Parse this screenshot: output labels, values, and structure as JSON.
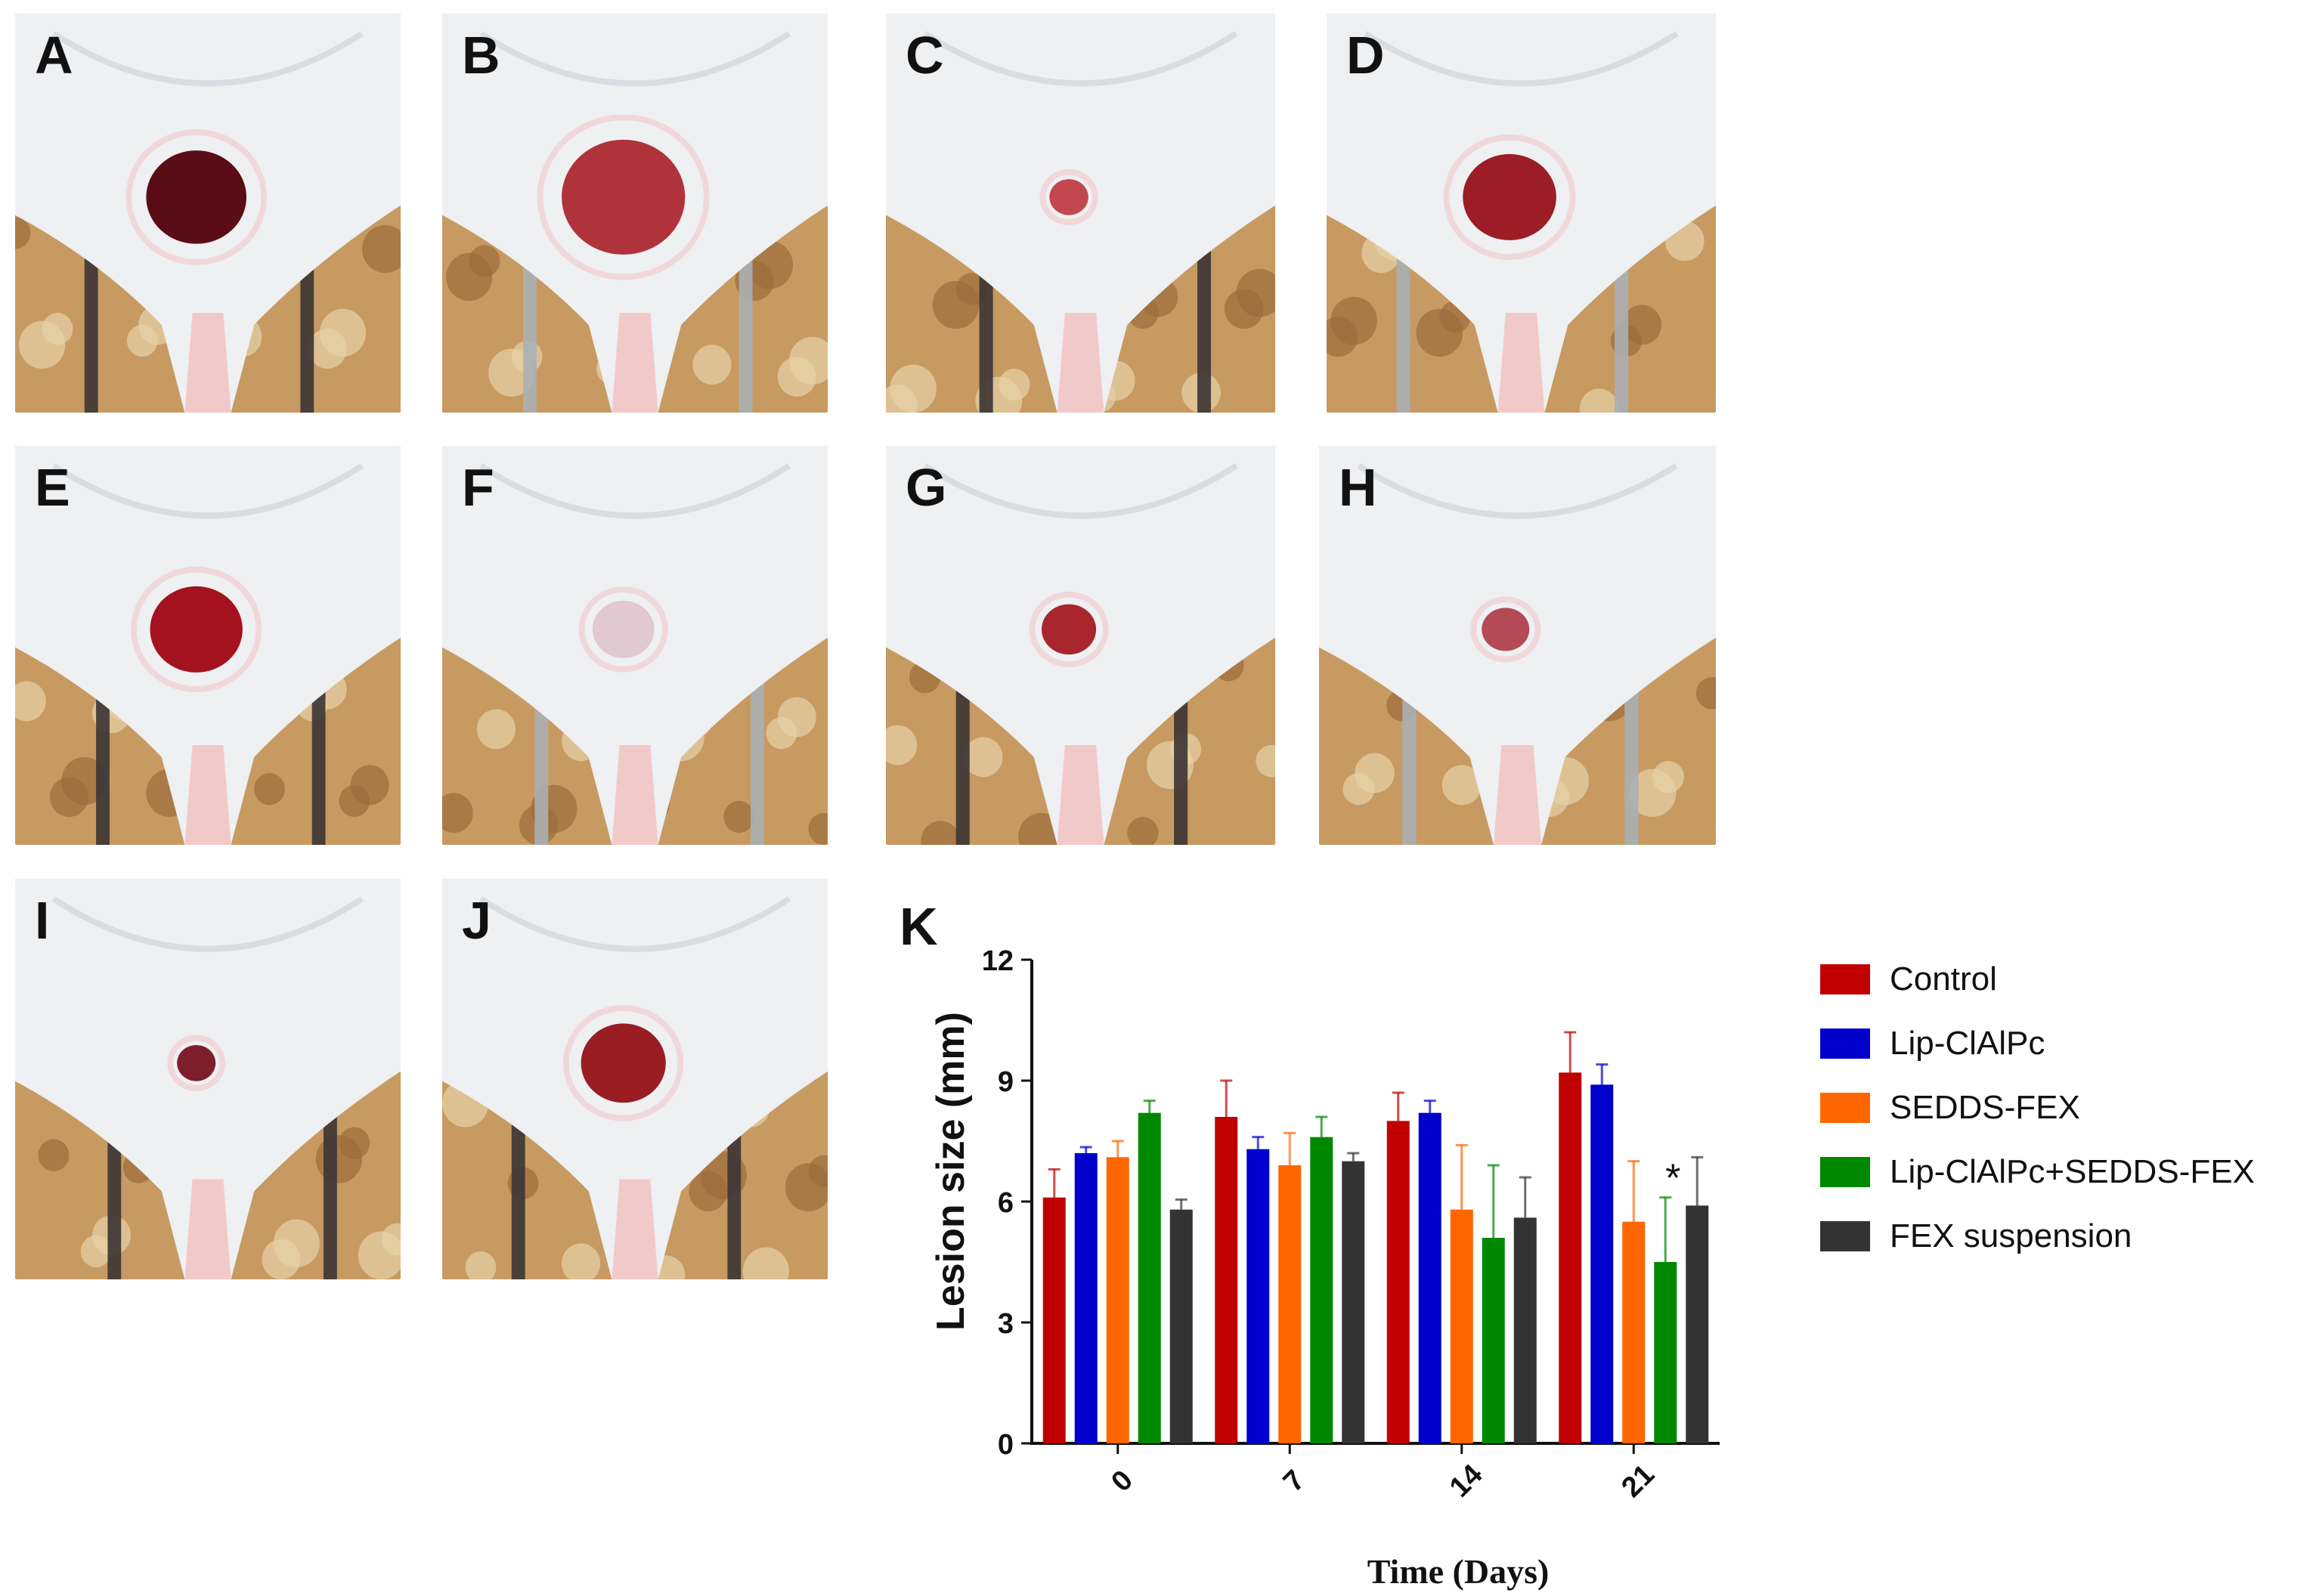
{
  "panels": [
    {
      "letter": "A",
      "lesion_color": "#5a0d16"
    },
    {
      "letter": "B",
      "lesion_color": "#b0333b"
    },
    {
      "letter": "C",
      "lesion_color": "#c2474f"
    },
    {
      "letter": "D",
      "lesion_color": "#9c1d25"
    },
    {
      "letter": "E",
      "lesion_color": "#a4121f"
    },
    {
      "letter": "F",
      "lesion_color": "#d9a7b4"
    },
    {
      "letter": "G",
      "lesion_color": "#a9262e"
    },
    {
      "letter": "H",
      "lesion_color": "#b44a56"
    },
    {
      "letter": "I",
      "lesion_color": "#7e1d2b"
    },
    {
      "letter": "J",
      "lesion_color": "#9a1d24"
    }
  ],
  "chart_data": {
    "type": "bar",
    "panel_label": "K",
    "xlabel": "Time (Days)",
    "ylabel": "Lesion size (mm)",
    "ylim": [
      0,
      12
    ],
    "yticks": [
      "0",
      "3",
      "6",
      "9",
      "12"
    ],
    "categories": [
      "0",
      "7",
      "14",
      "21"
    ],
    "legend_position": "right",
    "series": [
      {
        "name": "Control",
        "color": "#c00000",
        "values": [
          6.1,
          8.1,
          8.0,
          9.2
        ],
        "errors": [
          0.7,
          0.9,
          0.7,
          1.0
        ]
      },
      {
        "name": "Lip-ClAlPc",
        "color": "#0000cc",
        "values": [
          7.2,
          7.3,
          8.2,
          8.9
        ],
        "errors": [
          0.15,
          0.3,
          0.3,
          0.5
        ]
      },
      {
        "name": "SEDDS-FEX",
        "color": "#ff6600",
        "values": [
          7.1,
          6.9,
          5.8,
          5.5
        ],
        "errors": [
          0.4,
          0.8,
          1.6,
          1.5
        ]
      },
      {
        "name": "Lip-ClAlPc+SEDDS-FEX",
        "color": "#008800",
        "values": [
          8.2,
          7.6,
          5.1,
          4.5
        ],
        "errors": [
          0.3,
          0.5,
          1.8,
          1.6
        ]
      },
      {
        "name": "FEX suspension",
        "color": "#333333",
        "values": [
          5.8,
          7.0,
          5.6,
          5.9
        ],
        "errors": [
          0.25,
          0.2,
          1.0,
          1.2
        ]
      }
    ],
    "annotations": [
      {
        "text": "*",
        "category": "21",
        "series": "Lip-ClAlPc+SEDDS-FEX"
      }
    ]
  }
}
